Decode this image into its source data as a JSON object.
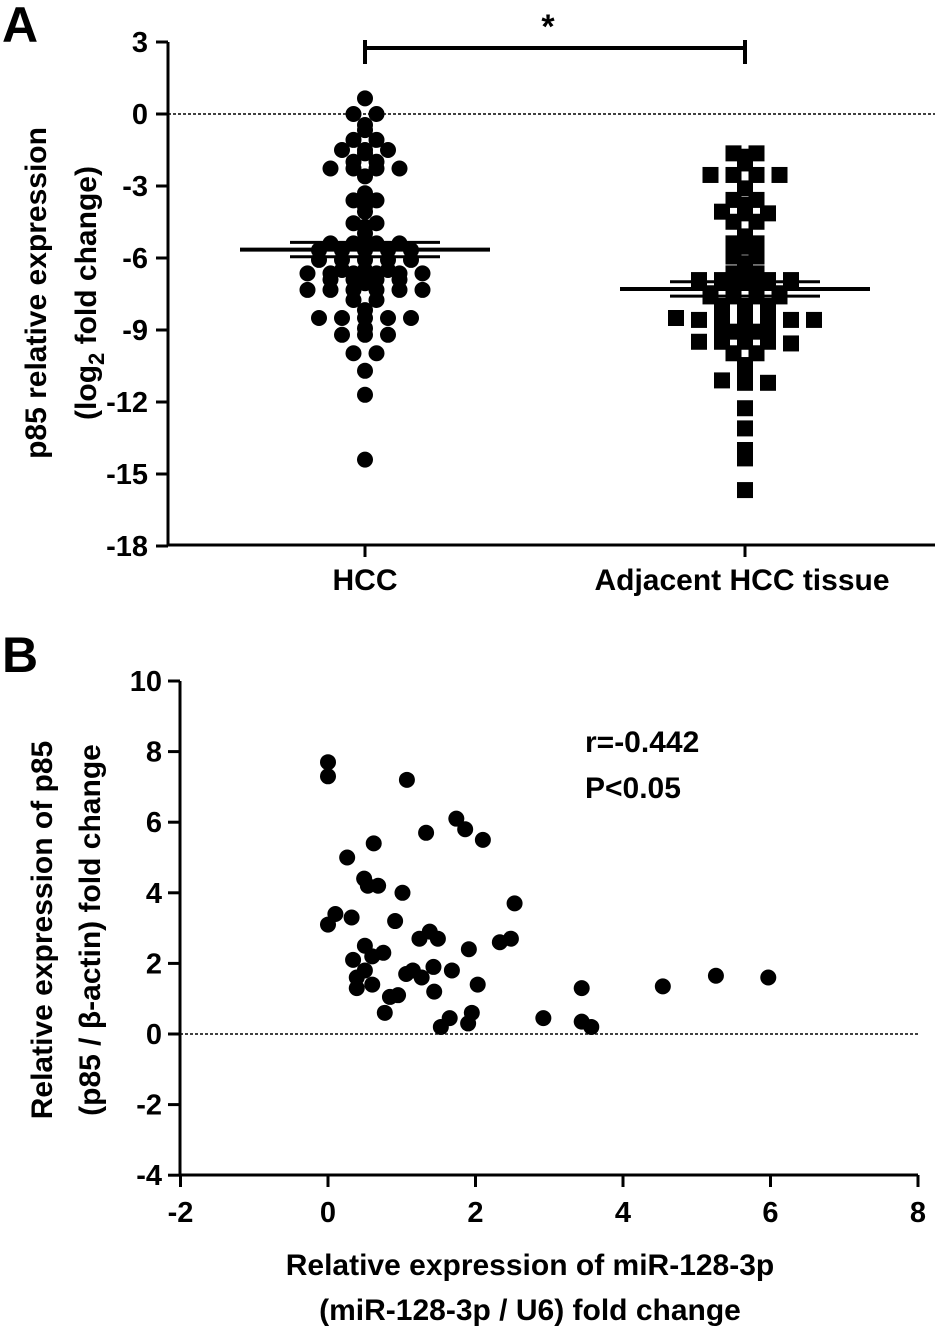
{
  "chart_data": [
    {
      "panel_label": "A",
      "type": "scatter",
      "subtype": "dot-plot-with-mean-sem",
      "ylabel_line1": "p85 relative expression",
      "ylabel_line2": {
        "pre": "(log",
        "sub": "2",
        "post": " fold change)"
      },
      "ylim": [
        -18,
        3
      ],
      "yticks": [
        "3",
        "0",
        "-3",
        "-6",
        "-9",
        "-12",
        "-15",
        "-18"
      ],
      "ytick_values": [
        3,
        0,
        -3,
        -6,
        -9,
        -12,
        -15,
        -18
      ],
      "reference_line": 0,
      "categories": [
        "HCC",
        "Adjacent HCC tissue"
      ],
      "significance": {
        "between": [
          "HCC",
          "Adjacent HCC tissue"
        ],
        "label": "*"
      },
      "series": [
        {
          "name": "HCC",
          "marker": "circle",
          "mean": -5.65,
          "sem": 0.3,
          "values": [
            0.65,
            0,
            0,
            -0.46,
            -0.67,
            -1.08,
            -1.08,
            -1.5,
            -1.5,
            -1.5,
            -1.64,
            -1.99,
            -1.99,
            -2.27,
            -2.27,
            -2.27,
            -2.27,
            -2.6,
            -3.3,
            -3.6,
            -3.6,
            -3.86,
            -4.07,
            -4.55,
            -4.55,
            -4.7,
            -4.97,
            -5.25,
            -5.39,
            -5.39,
            -5.39,
            -5.39,
            -5.67,
            -5.67,
            -5.67,
            -5.67,
            -5.67,
            -6.08,
            -6.08,
            -6.08,
            -6.08,
            -6.08,
            -6.5,
            -6.5,
            -6.5,
            -6.64,
            -6.64,
            -6.64,
            -6.64,
            -6.64,
            -6.64,
            -6.9,
            -6.9,
            -6.9,
            -6.9,
            -7.05,
            -7.33,
            -7.33,
            -7.33,
            -7.33,
            -7.33,
            -7.33,
            -7.75,
            -7.75,
            -8.17,
            -8.5,
            -8.5,
            -8.5,
            -8.5,
            -8.5,
            -8.93,
            -9.2,
            -9.2,
            -9.2,
            -9.97,
            -9.97,
            -10.7,
            -11.7,
            -14.4
          ]
        },
        {
          "name": "Adjacent HCC tissue",
          "marker": "square",
          "mean": -7.29,
          "sem": 0.3,
          "values": [
            -1.64,
            -1.64,
            -1.78,
            -2.06,
            -2.54,
            -2.54,
            -2.54,
            -2.54,
            -3.1,
            -3.58,
            -3.58,
            -3.79,
            -4.07,
            -4.14,
            -4.14,
            -4.49,
            -4.49,
            -5.1,
            -5.39,
            -5.39,
            -5.53,
            -5.8,
            -5.8,
            -5.94,
            -5.94,
            -6.22,
            -6.43,
            -6.64,
            -6.64,
            -6.92,
            -6.92,
            -6.92,
            -6.92,
            -6.92,
            -7.13,
            -7.13,
            -7.47,
            -7.47,
            -7.47,
            -7.47,
            -7.6,
            -7.6,
            -7.6,
            -7.6,
            -8.0,
            -8.0,
            -8.0,
            -8.17,
            -8.5,
            -8.58,
            -8.58,
            -8.58,
            -8.58,
            -8.58,
            -8.58,
            -8.86,
            -8.86,
            -8.86,
            -9.07,
            -9.07,
            -9.49,
            -9.49,
            -9.49,
            -9.49,
            -9.56,
            -9.97,
            -9.97,
            -10.46,
            -10.94,
            -11.1,
            -11.2,
            -11.2,
            -12.26,
            -13.1,
            -14.0,
            -14.35,
            -15.67
          ]
        }
      ]
    },
    {
      "panel_label": "B",
      "type": "scatter",
      "xlabel_line1": "Relative expression of miR-128-3p",
      "xlabel_line2": "(miR-128-3p / U6)  fold change",
      "ylabel_line1": "Relative expression of p85",
      "ylabel_line2": "(p85 / β-actin) fold change",
      "xlim": [
        -2,
        8
      ],
      "ylim": [
        -4,
        10
      ],
      "xticks": [
        "-2",
        "0",
        "2",
        "4",
        "6",
        "8"
      ],
      "xtick_values": [
        -2,
        0,
        2,
        4,
        6,
        8
      ],
      "yticks": [
        "10",
        "8",
        "6",
        "4",
        "2",
        "0",
        "-2",
        "-4"
      ],
      "ytick_values": [
        10,
        8,
        6,
        4,
        2,
        0,
        -2,
        -4
      ],
      "reference_line": 0,
      "annotation_r": "r=-0.442",
      "annotation_p": "P<0.05",
      "points": [
        [
          0.0,
          7.7
        ],
        [
          0.0,
          7.3
        ],
        [
          1.07,
          7.2
        ],
        [
          1.74,
          6.1
        ],
        [
          1.86,
          5.8
        ],
        [
          2.1,
          5.5
        ],
        [
          1.33,
          5.7
        ],
        [
          0.62,
          5.4
        ],
        [
          0.26,
          5.0
        ],
        [
          0.49,
          4.4
        ],
        [
          0.68,
          4.2
        ],
        [
          0.54,
          4.2
        ],
        [
          1.01,
          4.0
        ],
        [
          2.53,
          3.7
        ],
        [
          0.1,
          3.4
        ],
        [
          0.32,
          3.3
        ],
        [
          0.0,
          3.1
        ],
        [
          0.91,
          3.2
        ],
        [
          1.24,
          2.7
        ],
        [
          1.38,
          2.9
        ],
        [
          1.49,
          2.7
        ],
        [
          1.91,
          2.4
        ],
        [
          2.33,
          2.6
        ],
        [
          2.48,
          2.7
        ],
        [
          0.5,
          2.5
        ],
        [
          0.75,
          2.3
        ],
        [
          0.6,
          2.2
        ],
        [
          0.34,
          2.1
        ],
        [
          0.5,
          1.8
        ],
        [
          0.39,
          1.6
        ],
        [
          0.39,
          1.3
        ],
        [
          0.6,
          1.4
        ],
        [
          1.06,
          1.7
        ],
        [
          1.15,
          1.8
        ],
        [
          1.27,
          1.6
        ],
        [
          1.43,
          1.9
        ],
        [
          1.68,
          1.8
        ],
        [
          2.03,
          1.4
        ],
        [
          1.44,
          1.2
        ],
        [
          0.84,
          1.05
        ],
        [
          0.95,
          1.1
        ],
        [
          0.77,
          0.6
        ],
        [
          1.65,
          0.45
        ],
        [
          1.53,
          0.2
        ],
        [
          1.95,
          0.6
        ],
        [
          1.9,
          0.3
        ],
        [
          2.92,
          0.45
        ],
        [
          3.44,
          1.3
        ],
        [
          3.44,
          0.35
        ],
        [
          3.57,
          0.2
        ],
        [
          4.54,
          1.35
        ],
        [
          5.26,
          1.65
        ],
        [
          5.97,
          1.6
        ]
      ]
    }
  ]
}
